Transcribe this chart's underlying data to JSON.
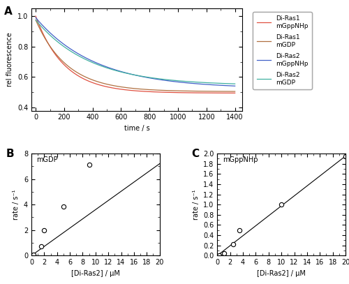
{
  "panel_A": {
    "title_label": "A",
    "xlabel": "time / s",
    "ylabel": "rel fluorescence",
    "xlim": [
      -30,
      1450
    ],
    "ylim": [
      0.38,
      1.05
    ],
    "yticks": [
      0.4,
      0.6,
      0.8,
      1.0
    ],
    "xticks": [
      0,
      200,
      400,
      600,
      800,
      1000,
      1200,
      1400
    ],
    "curves": [
      {
        "label": "Di-Ras1\nmGppNHp",
        "color": "#e05040",
        "y0": 1.0,
        "yf": 0.495,
        "tau": 200
      },
      {
        "label": "Di-Ras1\nmGDP",
        "color": "#b07040",
        "y0": 0.975,
        "yf": 0.505,
        "tau": 220
      },
      {
        "label": "Di-Ras2\nmGppNHp",
        "color": "#4060c8",
        "y0": 0.99,
        "yf": 0.525,
        "tau": 420
      },
      {
        "label": "Di-Ras2\nmGDP",
        "color": "#40b0a0",
        "y0": 0.975,
        "yf": 0.545,
        "tau": 380
      }
    ]
  },
  "panel_B": {
    "title_label": "B",
    "annotation": "mGDP",
    "xlabel": "[Di-Ras2] / μM",
    "ylabel": "rate / s⁻¹",
    "xlim": [
      0,
      20
    ],
    "ylim": [
      0,
      8
    ],
    "xticks": [
      0,
      2,
      4,
      6,
      8,
      10,
      12,
      14,
      16,
      18,
      20
    ],
    "yticks": [
      0,
      2,
      4,
      6,
      8
    ],
    "data_x": [
      0.3,
      1.5,
      2.0,
      5.0,
      9.0
    ],
    "data_y": [
      0.08,
      0.75,
      2.0,
      3.85,
      7.1
    ],
    "line_x": [
      0,
      20
    ],
    "line_y": [
      0.0,
      7.2
    ]
  },
  "panel_C": {
    "title_label": "C",
    "annotation": "mGppNHp",
    "xlabel": "[Di-Ras2] / μM",
    "ylabel": "rate / s⁻¹",
    "xlim": [
      0,
      20
    ],
    "ylim": [
      0,
      2.0
    ],
    "xticks": [
      0,
      2,
      4,
      6,
      8,
      10,
      12,
      14,
      16,
      18,
      20
    ],
    "yticks": [
      0.0,
      0.2,
      0.4,
      0.6,
      0.8,
      1.0,
      1.2,
      1.4,
      1.6,
      1.8,
      2.0
    ],
    "data_x": [
      0.3,
      1.0,
      2.5,
      3.5,
      10.0,
      20.0
    ],
    "data_y": [
      0.01,
      0.05,
      0.22,
      0.5,
      1.0,
      1.95
    ],
    "line_x": [
      0,
      20
    ],
    "line_y": [
      0.0,
      1.95
    ]
  },
  "background_color": "#ffffff",
  "tick_direction": "in"
}
